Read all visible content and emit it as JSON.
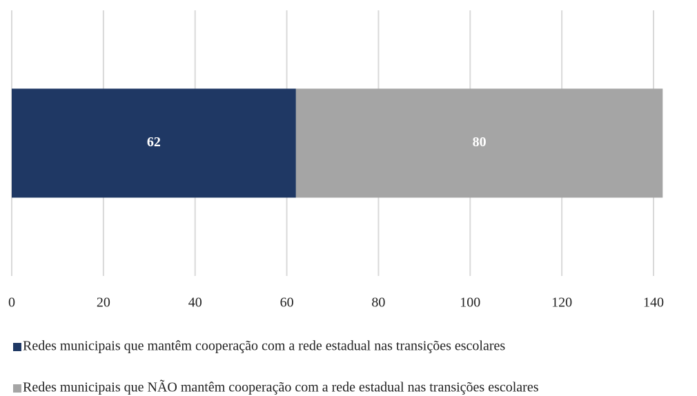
{
  "chart_data": {
    "type": "bar",
    "orientation": "horizontal",
    "stacked": true,
    "categories": [
      null
    ],
    "series": [
      {
        "name": "Redes municipais que mantêm cooperação com a rede estadual nas transições escolares",
        "color": "#1f3864",
        "values": [
          62
        ]
      },
      {
        "name": "Redes municipais que NÃO mantêm cooperação com a rede estadual nas transições escolares",
        "color": "#a5a5a5",
        "values": [
          80
        ]
      }
    ],
    "xlim": [
      0,
      140
    ],
    "xticks": [
      0,
      20,
      40,
      60,
      80,
      100,
      120,
      140
    ],
    "grid": true,
    "legend": "bottom"
  }
}
